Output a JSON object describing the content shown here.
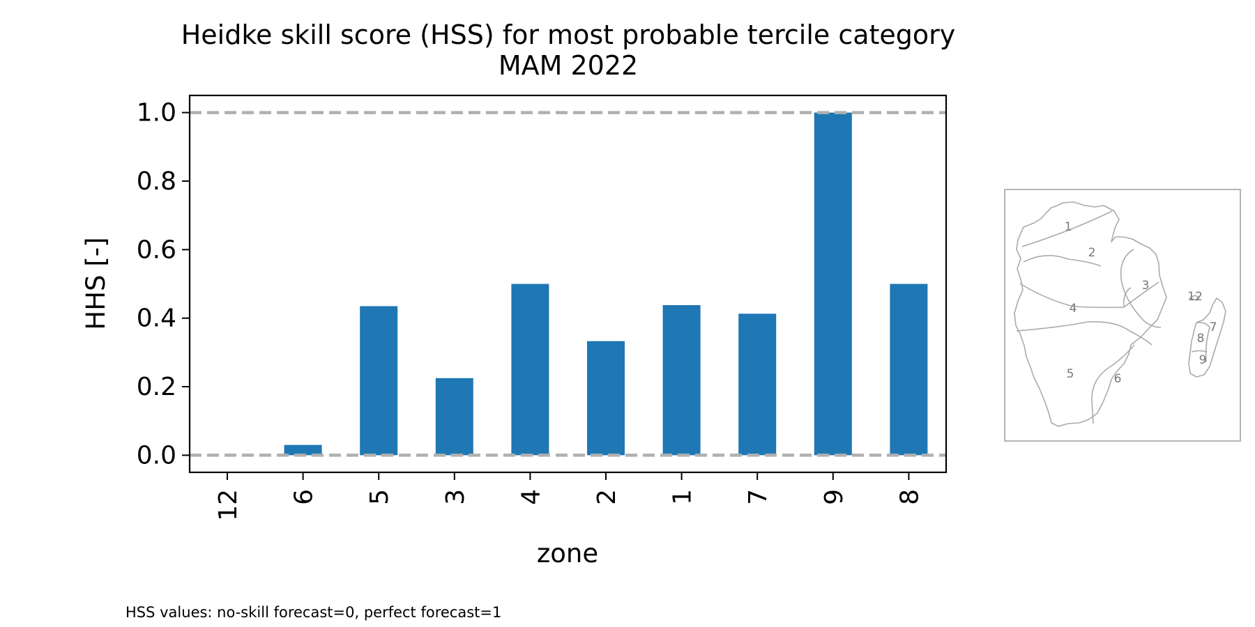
{
  "chart_data": {
    "type": "bar",
    "title": "Heidke skill score (HSS) for most probable tercile category",
    "subtitle": "MAM 2022",
    "xlabel": "zone",
    "ylabel": "HHS [-]",
    "categories": [
      "12",
      "6",
      "5",
      "3",
      "4",
      "2",
      "1",
      "7",
      "9",
      "8"
    ],
    "values": [
      0.0,
      0.03,
      0.435,
      0.225,
      0.5,
      0.333,
      0.438,
      0.413,
      1.0,
      0.5
    ],
    "ylim": [
      -0.05,
      1.05
    ],
    "yticks": [
      0.0,
      0.2,
      0.4,
      0.6,
      0.8,
      1.0
    ],
    "ytick_labels": [
      "0.0",
      "0.2",
      "0.4",
      "0.6",
      "0.8",
      "1.0"
    ],
    "reference_lines": [
      0.0,
      1.0
    ],
    "bar_color": "#1f77b4",
    "reference_line_color": "#b0b0b0",
    "grid": false,
    "footnote": "HSS values: no-skill forecast=0, perfect forecast=1"
  },
  "inset_map": {
    "zone_labels": [
      "1",
      "2",
      "3",
      "4",
      "5",
      "6",
      "7",
      "8",
      "9",
      "12"
    ],
    "outline_color": "#aaaaaa",
    "label_color": "#777777"
  }
}
